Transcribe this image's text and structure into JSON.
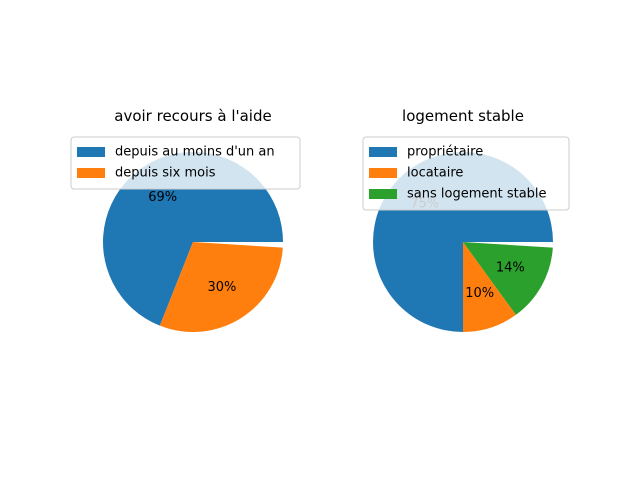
{
  "chart_data": [
    {
      "type": "pie",
      "title": "avoir recours à l'aide",
      "labels": [
        "depuis au moins d'un an",
        "depuis six mois"
      ],
      "values": [
        69,
        30
      ],
      "percent_labels": [
        "69%",
        "30%"
      ],
      "colors": [
        "#1f77b4",
        "#ff7f0e"
      ],
      "startangle": 0,
      "direction": "counterclockwise",
      "legend_position": "upper-right"
    },
    {
      "type": "pie",
      "title": "logement stable",
      "labels": [
        "propriétaire",
        "locataire",
        "sans logement stable"
      ],
      "values": [
        75,
        10,
        14
      ],
      "percent_labels": [
        "75%",
        "10%",
        "14%"
      ],
      "colors": [
        "#1f77b4",
        "#ff7f0e",
        "#2ca02c"
      ],
      "startangle": 0,
      "direction": "counterclockwise",
      "legend_position": "upper-right"
    }
  ]
}
